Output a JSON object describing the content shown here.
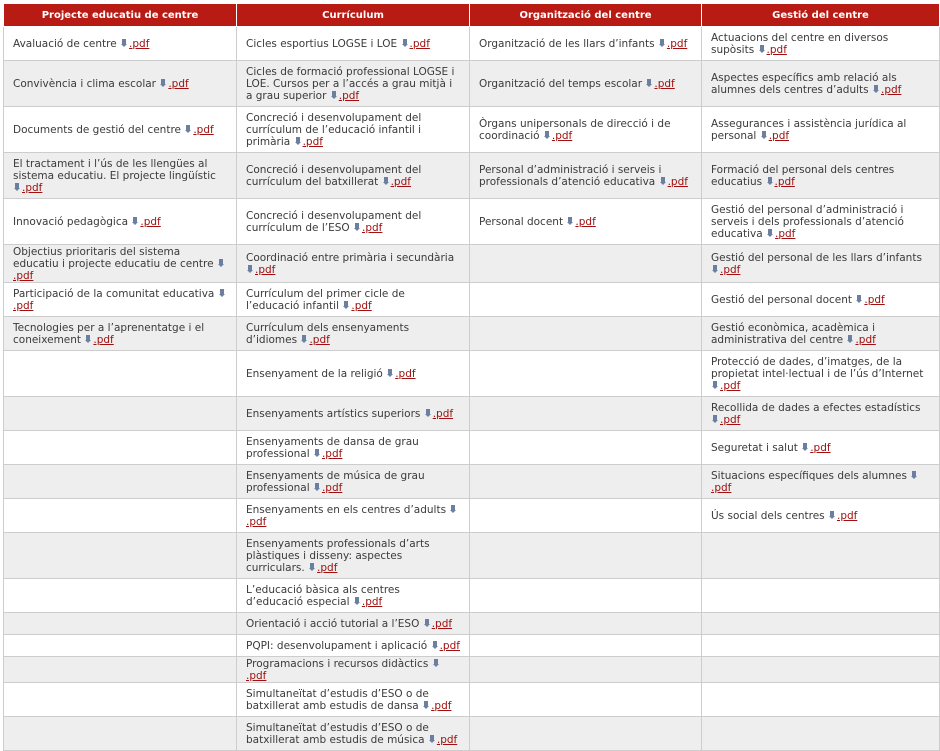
{
  "headers": [
    "Projecte educatiu de centre",
    "Currículum",
    "Organització del centre",
    "Gestió del centre"
  ],
  "link_label": ".pdf",
  "colors": {
    "header_bg": "#b81a14",
    "header_text": "#ffffff",
    "link": "#a01010",
    "row_alt": "#eeeeee",
    "icon": "#6b7fa0"
  },
  "icon_name": "download-icon",
  "rows": [
    [
      "Avaluació de centre",
      "Cicles esportius LOGSE i LOE",
      "Organització de les llars d’infants",
      "Actuacions del centre en diversos supòsits"
    ],
    [
      "Convivència i clima escolar",
      "Cicles de formació professional LOGSE i LOE. Cursos per a l’accés a grau mitjà i a grau superior",
      "Organització del temps escolar",
      "Aspectes específics amb relació als alumnes dels centres d’adults"
    ],
    [
      "Documents de gestió del centre",
      "Concreció i desenvolupament del currículum de l’educació infantil i primària",
      "Òrgans unipersonals de direcció i de coordinació",
      "Assegurances i assistència jurídica al personal"
    ],
    [
      "El tractament i l’ús de les llengües al sistema educatiu. El projecte lingüístic",
      "Concreció i desenvolupament del currículum del batxillerat",
      "Personal d’administració i serveis i professionals d’atenció educativa",
      "Formació del personal dels centres educatius"
    ],
    [
      "Innovació pedagògica",
      "Concreció i desenvolupament del currículum de l’ESO",
      "Personal docent",
      "Gestió del personal d’administració i serveis i dels professionals d’atenció educativa"
    ],
    [
      "Objectius prioritaris del sistema educatiu i projecte educatiu de centre",
      "Coordinació entre primària i secundària",
      "",
      "Gestió del personal de les llars d’infants"
    ],
    [
      "Participació de la comunitat educativa",
      "Currículum del primer cicle de l’educació infantil",
      "",
      "Gestió del personal docent"
    ],
    [
      "Tecnologies per a l’aprenentatge i el coneixement",
      "Currículum dels ensenyaments d’idiomes",
      "",
      "Gestió econòmica, acadèmica i administrativa del centre"
    ],
    [
      "",
      "Ensenyament de la religió",
      "",
      "Protecció de dades, d’imatges, de la propietat intel·lectual i de l’ús d’Internet"
    ],
    [
      "",
      "Ensenyaments artístics superiors",
      "",
      "Recollida de dades a efectes estadístics"
    ],
    [
      "",
      "Ensenyaments  de dansa de grau professional",
      "",
      "Seguretat i salut"
    ],
    [
      "",
      "Ensenyaments  de música de grau professional",
      "",
      "Situacions específiques dels alumnes"
    ],
    [
      "",
      "Ensenyaments en els centres d’adults",
      "",
      "Ús social dels centres"
    ],
    [
      "",
      "Ensenyaments professionals d’arts plàstiques i disseny: aspectes curriculars.",
      "",
      ""
    ],
    [
      "",
      "L’educació bàsica als centres d’educació especial",
      "",
      ""
    ],
    [
      "",
      "Orientació i acció tutorial a l’ESO",
      "",
      ""
    ],
    [
      "",
      "PQPI: desenvolupament i aplicació",
      "",
      ""
    ],
    [
      "",
      "Programacions i recursos didàctics",
      "",
      ""
    ],
    [
      "",
      "Simultaneïtat d’estudis d’ESO o de batxillerat amb estudis de dansa",
      "",
      ""
    ],
    [
      "",
      "Simultaneïtat d’estudis d’ESO o de batxillerat amb estudis de música",
      "",
      ""
    ]
  ]
}
